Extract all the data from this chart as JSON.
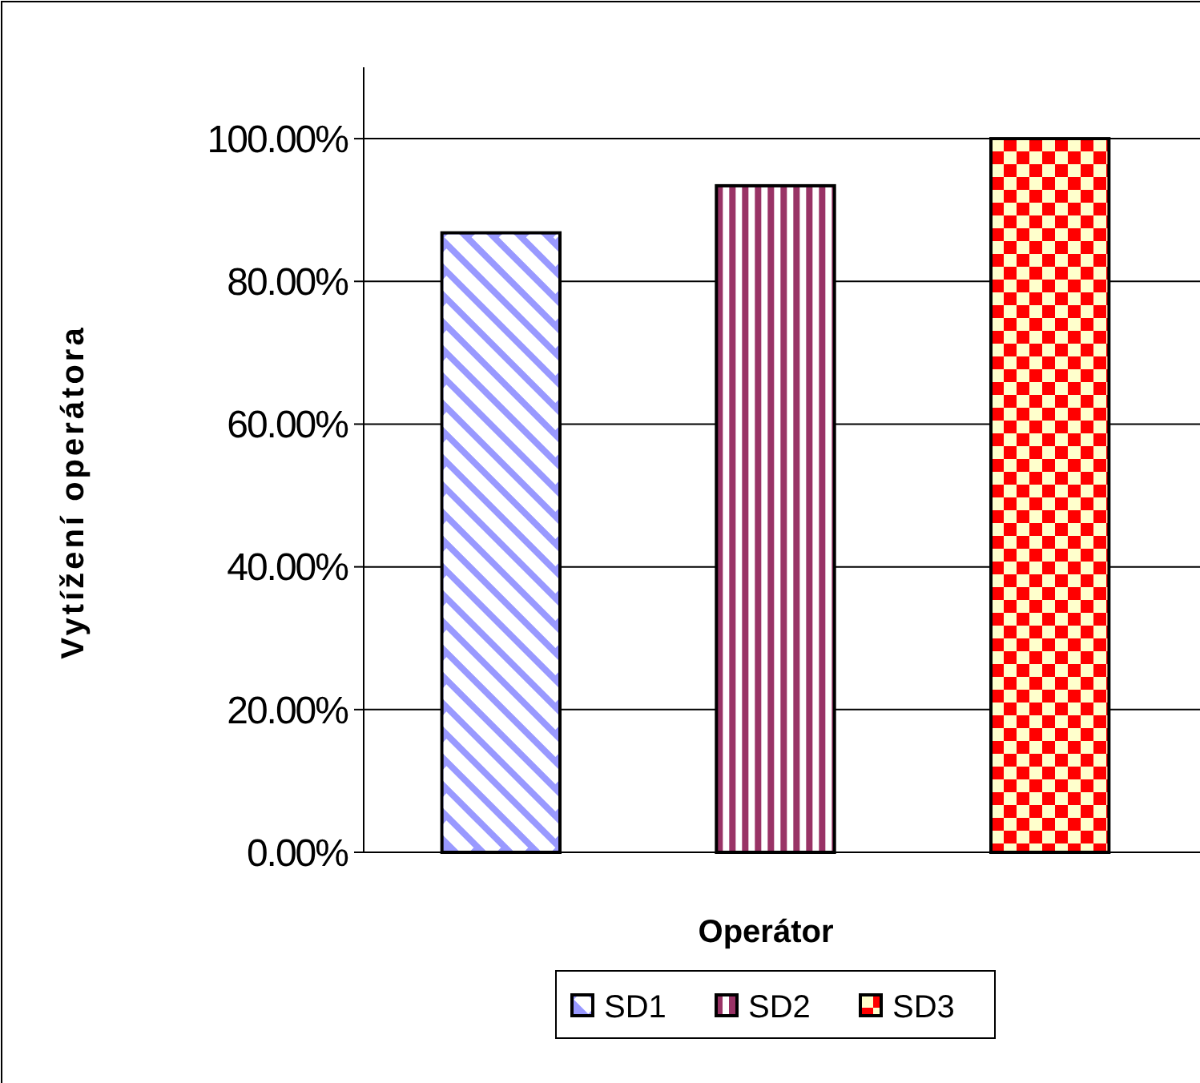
{
  "chart_data": {
    "type": "bar",
    "xlabel": "Operátor",
    "ylabel": "Vytížení operátora",
    "categories": [
      null
    ],
    "series": [
      {
        "name": "SD1",
        "color": "#9999ff",
        "values": [
          86.8
        ]
      },
      {
        "name": "SD2",
        "color": "#993366",
        "values": [
          93.4
        ]
      },
      {
        "name": "SD3",
        "color": "#ff0000",
        "values": [
          100
        ]
      }
    ],
    "ylim": [
      0,
      110
    ],
    "yticks": [
      {
        "value": 0,
        "label": "0.00%"
      },
      {
        "value": 20,
        "label": "20.00%"
      },
      {
        "value": 40,
        "label": "40.00%"
      },
      {
        "value": 60,
        "label": "60.00%"
      },
      {
        "value": 80,
        "label": "80.00%"
      },
      {
        "value": 100,
        "label": "100.00%"
      }
    ],
    "grid": "y",
    "legend": "bottom"
  }
}
